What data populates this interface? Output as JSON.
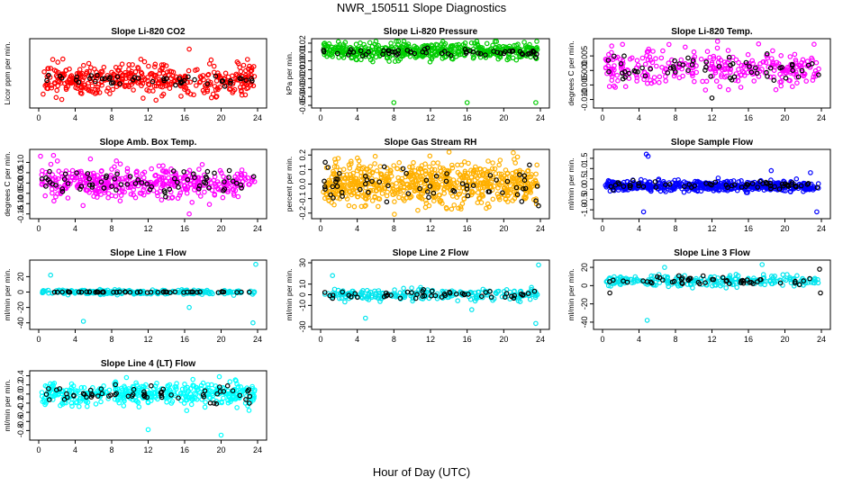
{
  "page": {
    "title": "NWR_150511  Slope Diagnostics",
    "xlabel": "Hour of Day (UTC)"
  },
  "chart_data": [
    {
      "type": "scatter",
      "title": "Slope Li-820 CO2",
      "ylabel": "Licor ppm per min.",
      "xlim": [
        0,
        24
      ],
      "ylim": [
        -0.13,
        0.2
      ],
      "xticks": [
        "0",
        "4",
        "8",
        "12",
        "16",
        "20",
        "24"
      ],
      "yticks": [],
      "series": [
        {
          "color": "#ff0000",
          "center": 0.0,
          "spread": 0.04,
          "n": 420,
          "outliers": [
            [
              16.5,
              0.16
            ],
            [
              1.0,
              0.06
            ]
          ]
        },
        {
          "color": "#000000",
          "center": 0.0,
          "spread": 0.015,
          "n": 46,
          "outliers": []
        }
      ]
    },
    {
      "type": "scatter",
      "title": "Slope Li-820 Pressure",
      "ylabel": "kPa per min.",
      "xlim": [
        0,
        24
      ],
      "ylim": [
        -0.05,
        0.022
      ],
      "xticks": [
        "0",
        "4",
        "8",
        "12",
        "16",
        "20",
        "24"
      ],
      "yticks": [
        "0.02",
        "0.01",
        "0.00",
        "-0.01",
        "-0.02",
        "-0.03",
        "-0.04",
        "-0.05"
      ],
      "series": [
        {
          "color": "#00cc00",
          "center": 0.011,
          "spread": 0.0045,
          "n": 480,
          "outliers": [
            [
              8,
              -0.047
            ],
            [
              16,
              -0.047
            ],
            [
              23.5,
              -0.047
            ]
          ]
        },
        {
          "color": "#000000",
          "center": 0.01,
          "spread": 0.002,
          "n": 60,
          "outliers": []
        }
      ]
    },
    {
      "type": "scatter",
      "title": "Slope Li-820 Temp.",
      "ylabel": "degrees C per min.",
      "xlim": [
        0,
        24
      ],
      "ylim": [
        -0.012,
        0.01
      ],
      "xticks": [
        "0",
        "4",
        "8",
        "12",
        "16",
        "20",
        "24"
      ],
      "yticks": [
        "0.005",
        "0.000",
        "-0.005",
        "-0.010"
      ],
      "series": [
        {
          "color": "#ff00ff",
          "center": 0.001,
          "spread": 0.003,
          "n": 300,
          "outliers": [
            [
              23.2,
              0.009
            ]
          ]
        },
        {
          "color": "#000000",
          "center": 0.001,
          "spread": 0.0025,
          "n": 60,
          "outliers": [
            [
              12,
              -0.0095
            ]
          ]
        }
      ]
    },
    {
      "type": "scatter",
      "title": "Slope Amb. Box Temp.",
      "ylabel": "degrees C per min.",
      "xlim": [
        0,
        24
      ],
      "ylim": [
        -0.16,
        0.15
      ],
      "xticks": [
        "0",
        "4",
        "8",
        "12",
        "16",
        "20",
        "24"
      ],
      "yticks": [
        "0.10",
        "0.05",
        "0.00",
        "-0.05",
        "-0.10",
        "-0.15"
      ],
      "series": [
        {
          "color": "#ff00ff",
          "center": 0.0,
          "spread": 0.04,
          "n": 420,
          "outliers": [
            [
              0.2,
              0.13
            ],
            [
              16.5,
              -0.15
            ]
          ]
        },
        {
          "color": "#000000",
          "center": 0.0,
          "spread": 0.03,
          "n": 70,
          "outliers": []
        }
      ]
    },
    {
      "type": "scatter",
      "title": "Slope Gas Stream RH",
      "ylabel": "percent per min.",
      "xlim": [
        0,
        24
      ],
      "ylim": [
        -0.22,
        0.22
      ],
      "xticks": [
        "0",
        "4",
        "8",
        "12",
        "16",
        "20",
        "24"
      ],
      "yticks": [
        "0.2",
        "0.1",
        "0.0",
        "-0.1",
        "-0.2"
      ],
      "series": [
        {
          "color": "#ffb000",
          "center": 0.0,
          "spread": 0.07,
          "n": 700,
          "outliers": []
        },
        {
          "color": "#000000",
          "center": 0.0,
          "spread": 0.05,
          "n": 60,
          "outliers": [
            [
              0.5,
              0.15
            ],
            [
              23.8,
              -0.15
            ]
          ]
        }
      ]
    },
    {
      "type": "scatter",
      "title": "Slope Sample Flow",
      "ylabel": "ml/min per min.",
      "xlim": [
        0,
        24
      ],
      "ylim": [
        -1.3,
        1.8
      ],
      "xticks": [
        "0",
        "4",
        "8",
        "12",
        "16",
        "20",
        "24"
      ],
      "yticks": [
        "1.5",
        "1.0",
        "0.5",
        "0.0",
        "-0.5",
        "-1.0"
      ],
      "series": [
        {
          "color": "#0000ff",
          "center": 0.15,
          "spread": 0.12,
          "n": 520,
          "outliers": [
            [
              4.8,
              1.7
            ],
            [
              5.0,
              1.6
            ],
            [
              4.5,
              -1.1
            ],
            [
              23.5,
              -1.1
            ],
            [
              18.5,
              0.9
            ],
            [
              22.8,
              0.8
            ]
          ]
        },
        {
          "color": "#000000",
          "center": 0.2,
          "spread": 0.1,
          "n": 60,
          "outliers": []
        }
      ]
    },
    {
      "type": "scatter",
      "title": "Slope Line 1 Flow",
      "ylabel": "ml/min per min.",
      "xlim": [
        0,
        24
      ],
      "ylim": [
        -45,
        38
      ],
      "xticks": [
        "0",
        "4",
        "8",
        "12",
        "16",
        "20",
        "24"
      ],
      "yticks": [
        "20",
        "0",
        "-20",
        "-40"
      ],
      "series": [
        {
          "color": "#00e5ee",
          "center": 0.0,
          "spread": 1.5,
          "n": 240,
          "outliers": [
            [
              1.3,
              22
            ],
            [
              4.9,
              -38
            ],
            [
              16.5,
              -20
            ],
            [
              23.8,
              36
            ],
            [
              23.5,
              -40
            ]
          ]
        },
        {
          "color": "#000000",
          "center": 0.0,
          "spread": 0.3,
          "n": 50,
          "outliers": []
        }
      ]
    },
    {
      "type": "scatter",
      "title": "Slope Line 2 Flow",
      "ylabel": "ml/min per min.",
      "xlim": [
        0,
        24
      ],
      "ylim": [
        -30,
        30
      ],
      "xticks": [
        "0",
        "4",
        "8",
        "12",
        "16",
        "20",
        "24"
      ],
      "yticks": [
        "30",
        "10",
        "0",
        "-10",
        "-30"
      ],
      "series": [
        {
          "color": "#00e5ee",
          "center": 0.0,
          "spread": 2.5,
          "n": 240,
          "outliers": [
            [
              1.3,
              18
            ],
            [
              4.9,
              -22
            ],
            [
              16.5,
              -14
            ],
            [
              23.8,
              28
            ],
            [
              23.5,
              -27
            ]
          ]
        },
        {
          "color": "#000000",
          "center": 0.0,
          "spread": 2.0,
          "n": 50,
          "outliers": []
        }
      ]
    },
    {
      "type": "scatter",
      "title": "Slope Line 3 Flow",
      "ylabel": "ml/min per min.",
      "xlim": [
        0,
        24
      ],
      "ylim": [
        -45,
        25
      ],
      "xticks": [
        "0",
        "4",
        "8",
        "12",
        "16",
        "20",
        "24"
      ],
      "yticks": [
        "20",
        "0",
        "-20",
        "-40"
      ],
      "series": [
        {
          "color": "#00e5ee",
          "center": 5.0,
          "spread": 3.0,
          "n": 240,
          "outliers": [
            [
              4.9,
              -38
            ],
            [
              17.5,
              23
            ],
            [
              6.8,
              20
            ]
          ]
        },
        {
          "color": "#000000",
          "center": 5.0,
          "spread": 2.5,
          "n": 50,
          "outliers": [
            [
              23.8,
              18
            ],
            [
              23.9,
              -8
            ],
            [
              0.8,
              -8
            ]
          ]
        }
      ]
    },
    {
      "type": "scatter",
      "title": "Slope Line 4 (LT) Flow",
      "ylabel": "ml/min per min.",
      "xlim": [
        0,
        24
      ],
      "ylim": [
        -0.95,
        0.45
      ],
      "xticks": [
        "0",
        "4",
        "8",
        "12",
        "16",
        "20",
        "24"
      ],
      "yticks": [
        "0.4",
        "0.2",
        "0.0",
        "-0.2",
        "-0.4",
        "-0.6",
        "-0.8"
      ],
      "series": [
        {
          "color": "#00ffff",
          "center": 0.0,
          "spread": 0.12,
          "n": 420,
          "outliers": [
            [
              12,
              -0.78
            ],
            [
              20,
              -0.9
            ],
            [
              19.8,
              0.38
            ]
          ]
        },
        {
          "color": "#000000",
          "center": 0.0,
          "spread": 0.1,
          "n": 60,
          "outliers": []
        }
      ]
    }
  ]
}
